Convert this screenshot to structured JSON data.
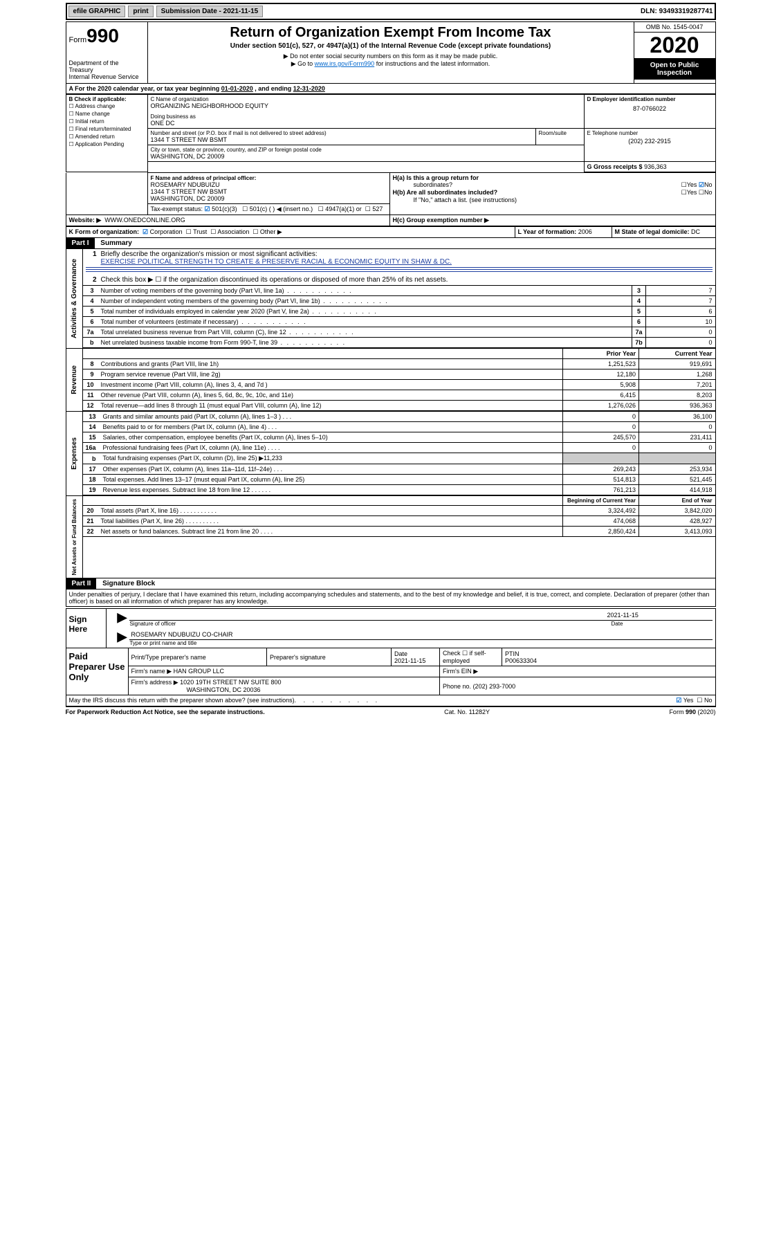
{
  "topbar": {
    "efile": "efile GRAPHIC",
    "print": "print",
    "subdate_lbl": "Submission Date - 2021-11-15",
    "dln": "DLN: 93493319287741"
  },
  "header": {
    "form": "Form",
    "f990": "990",
    "dept": "Department of the Treasury",
    "irs": "Internal Revenue Service",
    "title": "Return of Organization Exempt From Income Tax",
    "sub": "Under section 501(c), 527, or 4947(a)(1) of the Internal Revenue Code (except private foundations)",
    "note1": "▶ Do not enter social security numbers on this form as it may be made public.",
    "note2a": "▶ Go to ",
    "note2link": "www.irs.gov/Form990",
    "note2b": " for instructions and the latest information.",
    "omb": "OMB No. 1545-0047",
    "year": "2020",
    "otp1": "Open to Public",
    "otp2": "Inspection"
  },
  "rowA": {
    "pre": "A   For the 2020 calendar year, or tax year beginning ",
    "d1": "01-01-2020",
    "mid": " , and ending ",
    "d2": "12-31-2020"
  },
  "boxB": {
    "hdr": "B Check if applicable:",
    "items": [
      "☐ Address change",
      "☐ Name change",
      "☐ Initial return",
      "☐ Final return/terminated",
      "☐ Amended return",
      "☐ Application Pending"
    ]
  },
  "boxC": {
    "c": "C Name of organization",
    "org": "ORGANIZING NEIGHBORHOOD EQUITY",
    "dba_l": "Doing business as",
    "dba": "ONE DC",
    "addr_l": "Number and street (or P.O. box if mail is not delivered to street address)",
    "room": "Room/suite",
    "addr": "1344 T STREET NW BSMT",
    "city_l": "City or town, state or province, country, and ZIP or foreign postal code",
    "city": "WASHINGTON, DC  20009"
  },
  "boxD": {
    "lbl": "D Employer identification number",
    "val": "87-0766022"
  },
  "boxE": {
    "lbl": "E Telephone number",
    "val": "(202) 232-2915"
  },
  "boxG": {
    "lbl": "G Gross receipts $",
    "val": "936,363"
  },
  "boxF": {
    "lbl": "F  Name and address of principal officer:",
    "name": "ROSEMARY NDUBUIZU",
    "addr": "1344 T STREET NW BSMT",
    "city": "WASHINGTON, DC  20009"
  },
  "boxH": {
    "a": "H(a)  Is this a group return for",
    "a2": "subordinates?",
    "yes": "Yes",
    "no": "No",
    "b": "H(b)  Are all subordinates included?",
    "note": "If \"No,\" attach a list. (see instructions)",
    "c": "H(c)  Group exemption number ▶"
  },
  "boxI": {
    "lbl": "Tax-exempt status:",
    "o1": "501(c)(3)",
    "o2": "501(c) (  ) ◀ (insert no.)",
    "o3": "4947(a)(1) or",
    "o4": "527"
  },
  "boxJ": {
    "lbl": "Website: ▶",
    "val": "WWW.ONEDCONLINE.ORG"
  },
  "boxK": {
    "lbl": "K Form of organization:",
    "o1": "Corporation",
    "o2": "Trust",
    "o3": "Association",
    "o4": "Other ▶"
  },
  "boxL": {
    "lbl": "L Year of formation:",
    "val": "2006"
  },
  "boxM": {
    "lbl": "M State of legal domicile:",
    "val": "DC"
  },
  "part1": {
    "hdr": "Part I",
    "title": "Summary"
  },
  "sectA": {
    "vlabel": "Activities & Governance",
    "l1": "Briefly describe the organization's mission or most significant activities:",
    "l1v": "EXERCISE POLITICAL STRENGTH TO CREATE & PRESERVE RACIAL & ECONOMIC EQUITY IN SHAW & DC.",
    "l2": "Check this box ▶ ☐  if the organization discontinued its operations or disposed of more than 25% of its net assets.",
    "rows": [
      {
        "n": "3",
        "t": "Number of voting members of the governing body (Part VI, line 1a)",
        "lbl": "3",
        "v": "7"
      },
      {
        "n": "4",
        "t": "Number of independent voting members of the governing body (Part VI, line 1b)",
        "lbl": "4",
        "v": "7"
      },
      {
        "n": "5",
        "t": "Total number of individuals employed in calendar year 2020 (Part V, line 2a)",
        "lbl": "5",
        "v": "6"
      },
      {
        "n": "6",
        "t": "Total number of volunteers (estimate if necessary)",
        "lbl": "6",
        "v": "10"
      },
      {
        "n": "7a",
        "t": "Total unrelated business revenue from Part VIII, column (C), line 12",
        "lbl": "7a",
        "v": "0"
      },
      {
        "n": "b",
        "t": "Net unrelated business taxable income from Form 990-T, line 39",
        "lbl": "7b",
        "v": "0"
      }
    ]
  },
  "sectR": {
    "vlabel": "Revenue",
    "hdr1": "Prior Year",
    "hdr2": "Current Year",
    "rows": [
      {
        "n": "8",
        "t": "Contributions and grants (Part VIII, line 1h)",
        "v1": "1,251,523",
        "v2": "919,691"
      },
      {
        "n": "9",
        "t": "Program service revenue (Part VIII, line 2g)",
        "v1": "12,180",
        "v2": "1,268"
      },
      {
        "n": "10",
        "t": "Investment income (Part VIII, column (A), lines 3, 4, and 7d )",
        "v1": "5,908",
        "v2": "7,201"
      },
      {
        "n": "11",
        "t": "Other revenue (Part VIII, column (A), lines 5, 6d, 8c, 9c, 10c, and 11e)",
        "v1": "6,415",
        "v2": "8,203"
      },
      {
        "n": "12",
        "t": "Total revenue—add lines 8 through 11 (must equal Part VIII, column (A), line 12)",
        "v1": "1,276,026",
        "v2": "936,363"
      }
    ]
  },
  "sectE": {
    "vlabel": "Expenses",
    "rows": [
      {
        "n": "13",
        "t": "Grants and similar amounts paid (Part IX, column (A), lines 1–3 )   .    .    .",
        "v1": "0",
        "v2": "36,100"
      },
      {
        "n": "14",
        "t": "Benefits paid to or for members (Part IX, column (A), line 4)   .    .    .",
        "v1": "0",
        "v2": "0"
      },
      {
        "n": "15",
        "t": "Salaries, other compensation, employee benefits (Part IX, column (A), lines 5–10)",
        "v1": "245,570",
        "v2": "231,411"
      },
      {
        "n": "16a",
        "t": "Professional fundraising fees (Part IX, column (A), line 11e)   .    .    .    .",
        "v1": "0",
        "v2": "0"
      },
      {
        "n": "b",
        "t": "Total fundraising expenses (Part IX, column (D), line 25) ▶11,233",
        "v1": "",
        "v2": "",
        "nb": true
      },
      {
        "n": "17",
        "t": "Other expenses (Part IX, column (A), lines 11a–11d, 11f–24e)   .    .    .",
        "v1": "269,243",
        "v2": "253,934"
      },
      {
        "n": "18",
        "t": "Total expenses. Add lines 13–17 (must equal Part IX, column (A), line 25)",
        "v1": "514,813",
        "v2": "521,445"
      },
      {
        "n": "19",
        "t": "Revenue less expenses. Subtract line 18 from line 12  .    .    .    .    .    .",
        "v1": "761,213",
        "v2": "414,918"
      }
    ]
  },
  "sectN": {
    "vlabel": "Net Assets or Fund Balances",
    "hdr1": "Beginning of Current Year",
    "hdr2": "End of Year",
    "rows": [
      {
        "n": "20",
        "t": "Total assets (Part X, line 16)   .    .    .    .    .    .    .    .    .    .    .",
        "v1": "3,324,492",
        "v2": "3,842,020"
      },
      {
        "n": "21",
        "t": "Total liabilities (Part X, line 26)   .    .    .    .    .    .    .    .    .    .",
        "v1": "474,068",
        "v2": "428,927"
      },
      {
        "n": "22",
        "t": "Net assets or fund balances. Subtract line 21 from line 20  .    .    .    .",
        "v1": "2,850,424",
        "v2": "3,413,093"
      }
    ]
  },
  "part2": {
    "hdr": "Part II",
    "title": "Signature Block",
    "decl": "Under penalties of perjury, I declare that I have examined this return, including accompanying schedules and statements, and to the best of my knowledge and belief, it is true, correct, and complete. Declaration of preparer (other than officer) is based on all information of which preparer has any knowledge."
  },
  "sign": {
    "here": "Sign Here",
    "sig": "Signature of officer",
    "date": "Date",
    "dv": "2021-11-15",
    "name": "ROSEMARY NDUBUIZU  CO-CHAIR",
    "typ": "Type or print name and title"
  },
  "prep": {
    "title": "Paid Preparer Use Only",
    "c1": "Print/Type preparer's name",
    "c2": "Preparer's signature",
    "c3": "Date",
    "c3v": "2021-11-15",
    "c4": "Check ☐  if self-employed",
    "c5": "PTIN",
    "c5v": "P00633304",
    "firm_l": "Firm's name    ▶",
    "firm": "HAN GROUP LLC",
    "ein_l": "Firm's EIN ▶",
    "addr_l": "Firm's address ▶",
    "addr": "1020 19TH STREET NW SUITE 800",
    "city": "WASHINGTON, DC  20036",
    "ph_l": "Phone no.",
    "ph": "(202) 293-7000"
  },
  "disc": {
    "q": "May the IRS discuss this return with the preparer shown above? (see instructions)",
    "yes": "Yes",
    "no": "No"
  },
  "foot": {
    "l": "For Paperwork Reduction Act Notice, see the separate instructions.",
    "c": "Cat. No. 11282Y",
    "r": "Form 990 (2020)"
  }
}
